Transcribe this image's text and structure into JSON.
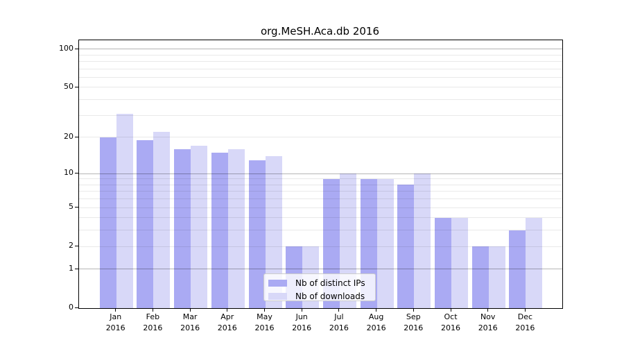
{
  "title": "org.MeSH.Aca.db 2016",
  "colors": {
    "bar_distinct_ips": "#aaaaf3",
    "bar_downloads": "#d8d8f8",
    "grid_major": "#b5b5b5",
    "grid_minor": "#e9e9e9",
    "frame": "#000000",
    "legend_border": "#cccccc",
    "background": "#ffffff"
  },
  "chart_data": {
    "type": "bar",
    "title": "org.MeSH.Aca.db 2016",
    "categories": [
      "Jan 2016",
      "Feb 2016",
      "Mar 2016",
      "Apr 2016",
      "May 2016",
      "Jun 2016",
      "Jul 2016",
      "Aug 2016",
      "Sep 2016",
      "Oct 2016",
      "Nov 2016",
      "Dec 2016"
    ],
    "month_labels": [
      "Jan",
      "Feb",
      "Mar",
      "Apr",
      "May",
      "Jun",
      "Jul",
      "Aug",
      "Sep",
      "Oct",
      "Nov",
      "Dec"
    ],
    "year_label": "2016",
    "series": [
      {
        "name": "Nb of distinct IPs",
        "color": "#aaaaf3",
        "values": [
          20,
          19,
          16,
          15,
          13,
          2,
          9,
          9,
          8,
          4,
          2,
          3
        ]
      },
      {
        "name": "Nb of downloads",
        "color": "#d8d8f8",
        "values": [
          31,
          22,
          17,
          16,
          14,
          2,
          10,
          9,
          10,
          4,
          2,
          4
        ]
      }
    ],
    "xlabel": "",
    "ylabel": "",
    "yscale": "log1p",
    "ylim": [
      0,
      117
    ],
    "y_tick_values": [
      0,
      1,
      2,
      5,
      10,
      20,
      50,
      100
    ],
    "major_gridlines": [
      1,
      10,
      100
    ],
    "minor_gridlines": [
      2,
      3,
      4,
      5,
      6,
      7,
      8,
      9,
      20,
      30,
      40,
      50,
      60,
      70,
      80,
      90
    ],
    "grid": "on",
    "legend_position": "bottom-center"
  }
}
